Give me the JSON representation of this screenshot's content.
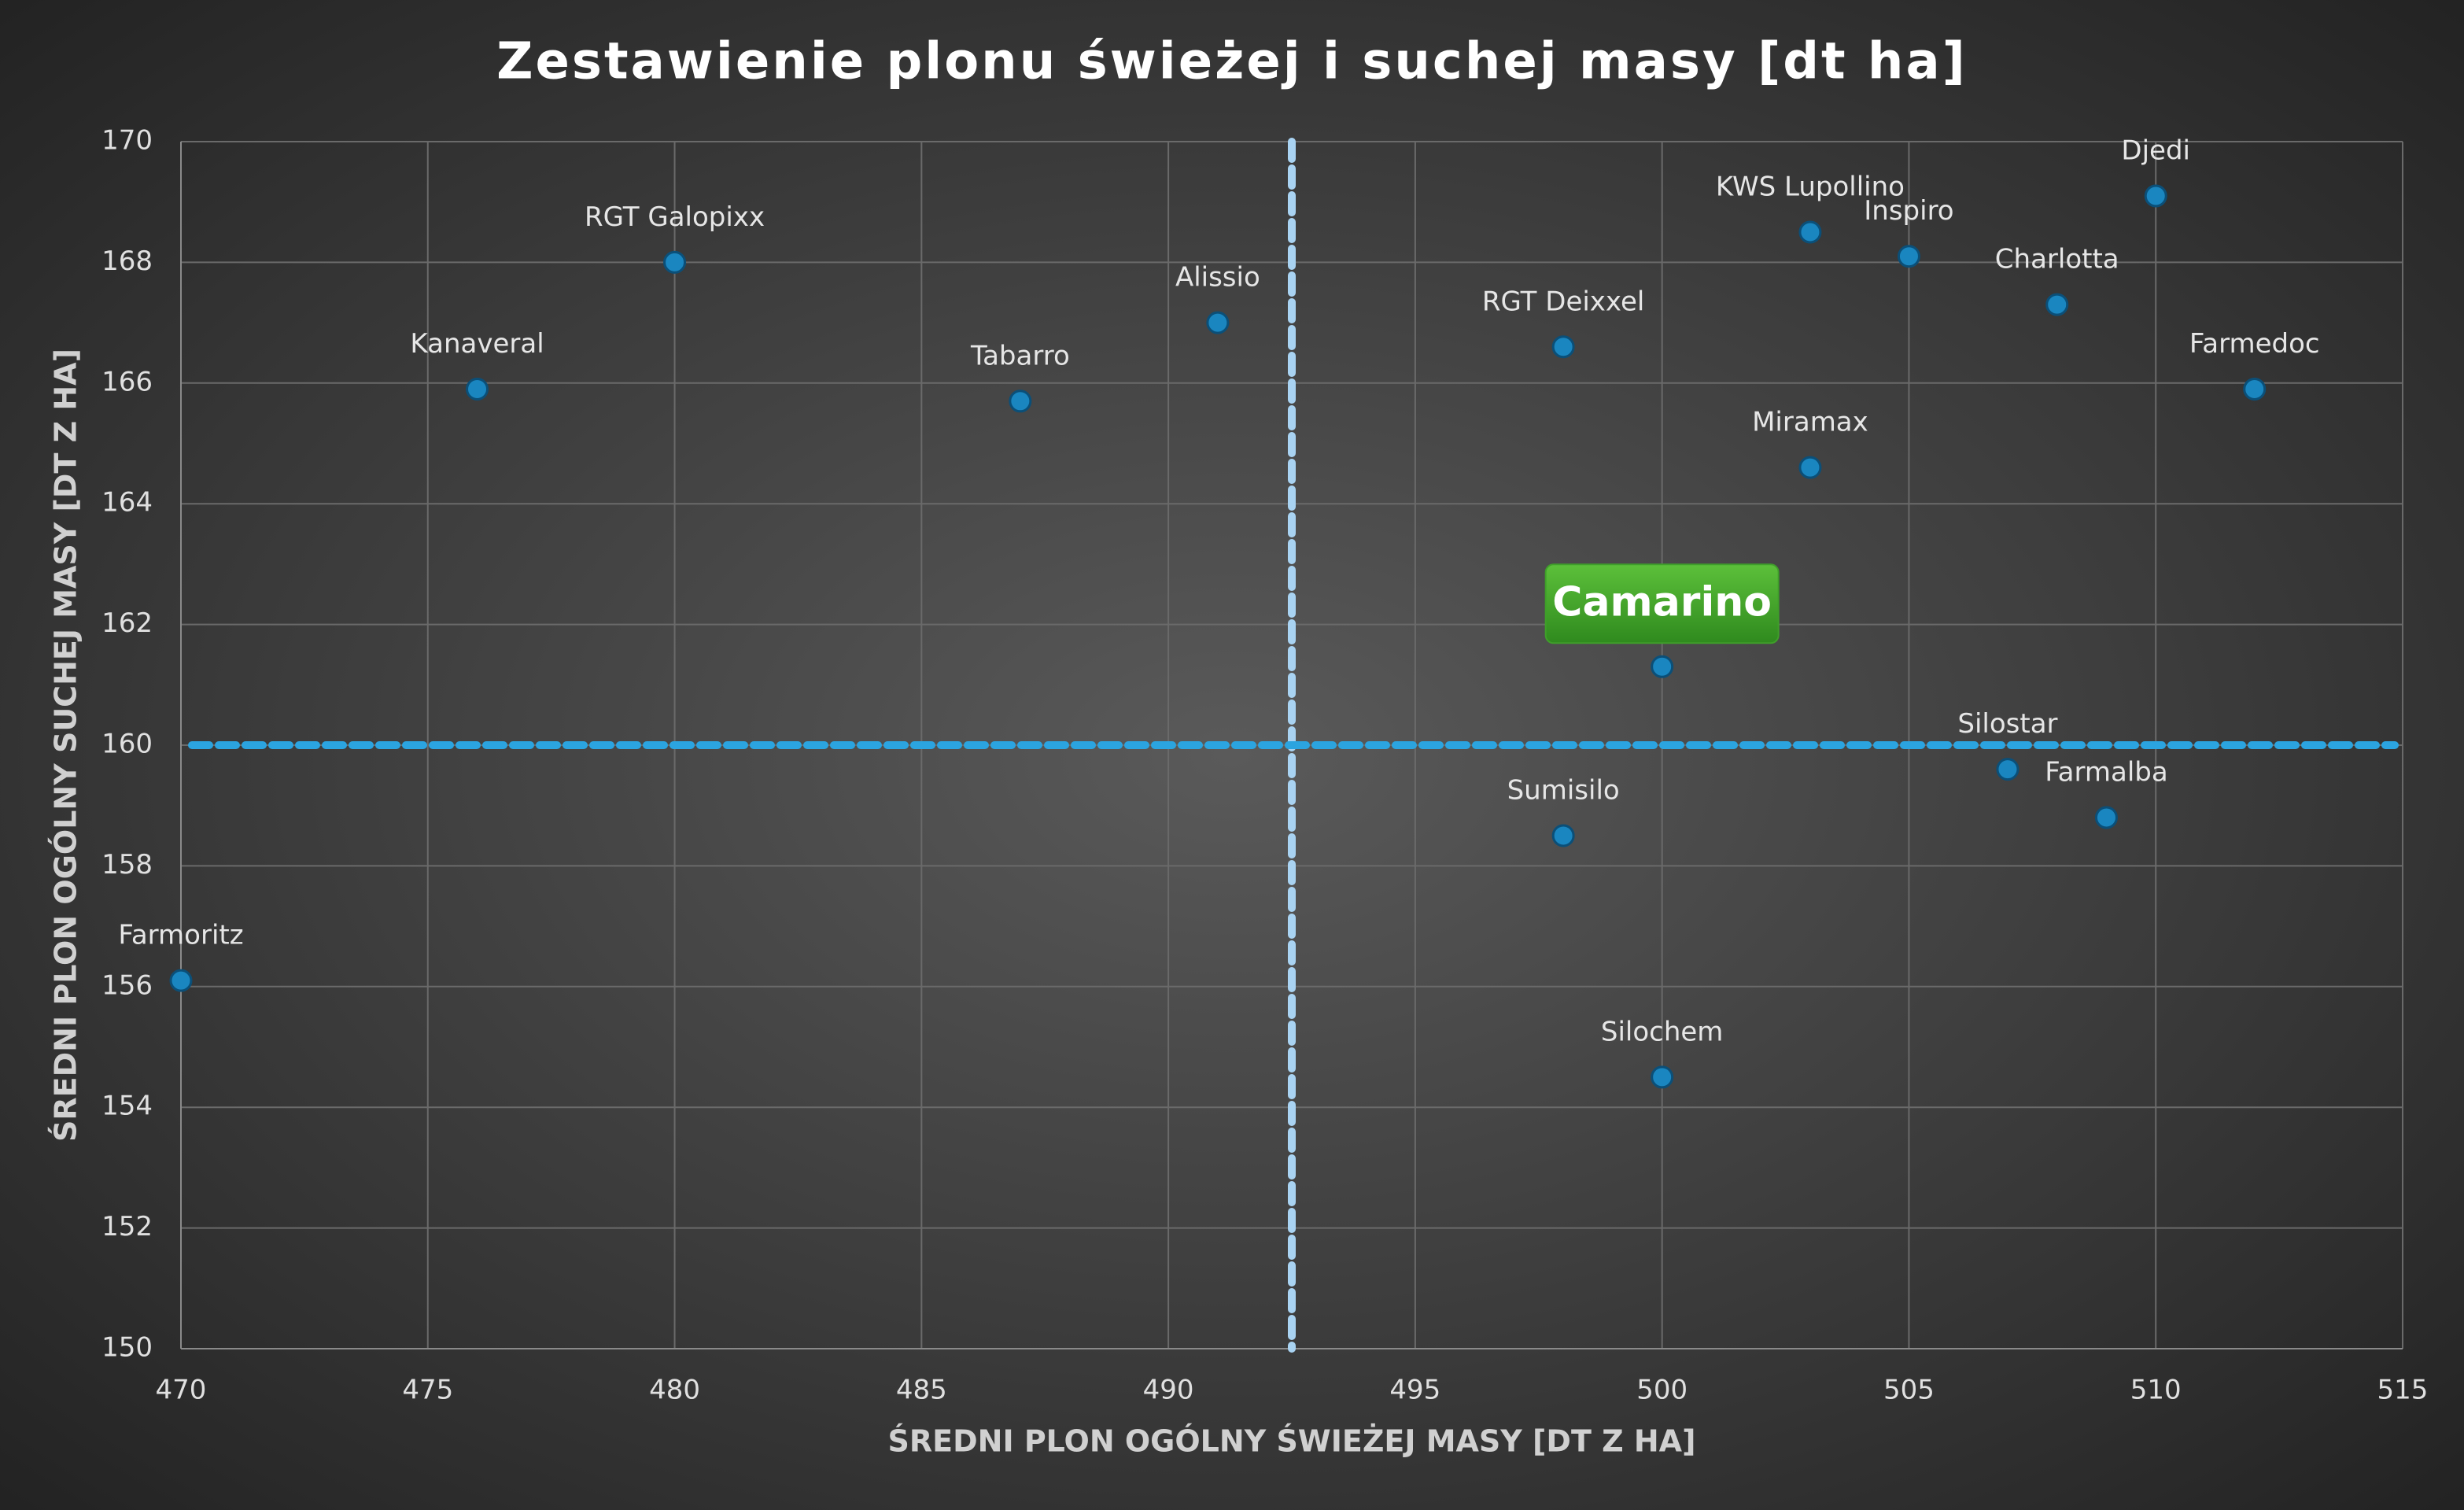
{
  "chart_data": {
    "type": "scatter",
    "title": "Zestawienie plonu świeżej i suchej masy [dt ha]",
    "x_label": "ŚREDNI PLON OGÓLNY ŚWIEŻEJ MASY [DT Z HA]",
    "y_label": "ŚREDNI PLON OGÓLNY SUCHEJ MASY [DT Z HA]",
    "labels": [
      "Farmoritz",
      "Kanaveral",
      "RGT Galopixx",
      "Tabarro",
      "Alissio",
      "RGT Deixxel",
      "Camarino",
      "Sumisilo",
      "Silochem",
      "Miramax",
      "KWS Lupollino",
      "Inspiro",
      "Charlotta",
      "Djedi",
      "Farmedoc",
      "Silostar",
      "Farmalba"
    ],
    "x": [
      470,
      476,
      480,
      487,
      491,
      498,
      500,
      498,
      500,
      503,
      503,
      505,
      508,
      510,
      512,
      507,
      509
    ],
    "values": [
      156.1,
      165.9,
      168,
      165.7,
      167,
      166.6,
      161.3,
      158.5,
      154.5,
      164.6,
      168.5,
      168.1,
      167.3,
      169.1,
      165.9,
      159.6,
      158.8
    ],
    "color": "#1a86c0",
    "highlighted_point": 6,
    "highlight_color": "#3f9e2a",
    "reference_lines": {
      "x": 492.5,
      "y": 160
    },
    "reference_colors": {
      "x": "#a9d3f2",
      "y": "#2ba4e0"
    },
    "xlim": [
      470,
      515
    ],
    "xticks": [
      470,
      475,
      480,
      485,
      490,
      495,
      500,
      505,
      510,
      515
    ],
    "ylim": [
      150,
      170
    ],
    "yticks": [
      150,
      152,
      154,
      156,
      158,
      160,
      162,
      164,
      166,
      168,
      170
    ],
    "grid": true
  }
}
